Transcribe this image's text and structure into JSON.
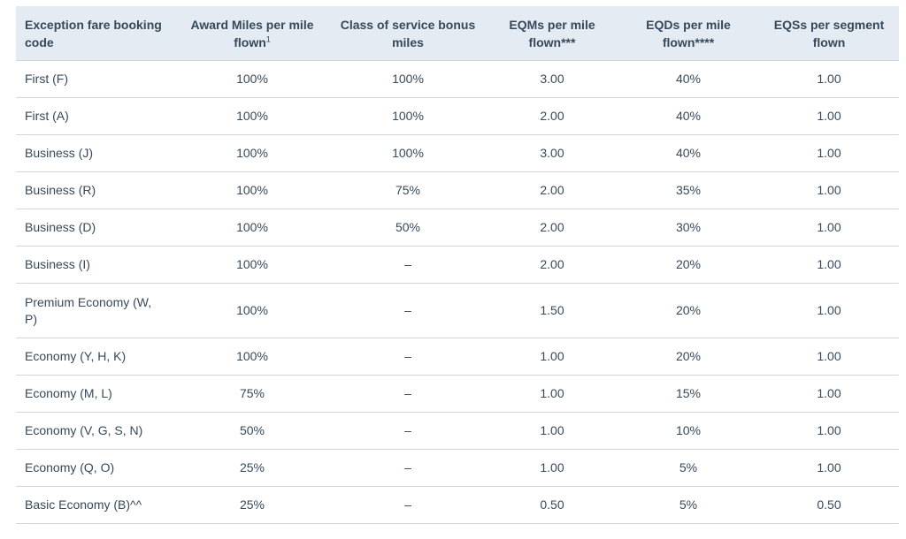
{
  "table": {
    "headers": [
      "Exception fare booking code",
      "Award Miles per mile flown",
      "Class of service bonus miles",
      "EQMs per mile flown***",
      "EQDs per mile flown****",
      "EQSs per segment flown"
    ],
    "header_award_footnote": "1",
    "rows": [
      [
        "First (F)",
        "100%",
        "100%",
        "3.00",
        "40%",
        "1.00"
      ],
      [
        "First (A)",
        "100%",
        "100%",
        "2.00",
        "40%",
        "1.00"
      ],
      [
        "Business (J)",
        "100%",
        "100%",
        "3.00",
        "40%",
        "1.00"
      ],
      [
        "Business (R)",
        "100%",
        "75%",
        "2.00",
        "35%",
        "1.00"
      ],
      [
        "Business (D)",
        "100%",
        "50%",
        "2.00",
        "30%",
        "1.00"
      ],
      [
        "Business (I)",
        "100%",
        "–",
        "2.00",
        "20%",
        "1.00"
      ],
      [
        "Premium Economy (W, P)",
        "100%",
        "–",
        "1.50",
        "20%",
        "1.00"
      ],
      [
        "Economy (Y, H, K)",
        "100%",
        "–",
        "1.00",
        "20%",
        "1.00"
      ],
      [
        "Economy (M, L)",
        "75%",
        "–",
        "1.00",
        "15%",
        "1.00"
      ],
      [
        "Economy (V, G, S, N)",
        "50%",
        "–",
        "1.00",
        "10%",
        "1.00"
      ],
      [
        "Economy (Q, O)",
        "25%",
        "–",
        "1.00",
        "5%",
        "1.00"
      ],
      [
        "Basic Economy (B)^^",
        "25%",
        "–",
        "0.50",
        "5%",
        "0.50"
      ]
    ]
  }
}
